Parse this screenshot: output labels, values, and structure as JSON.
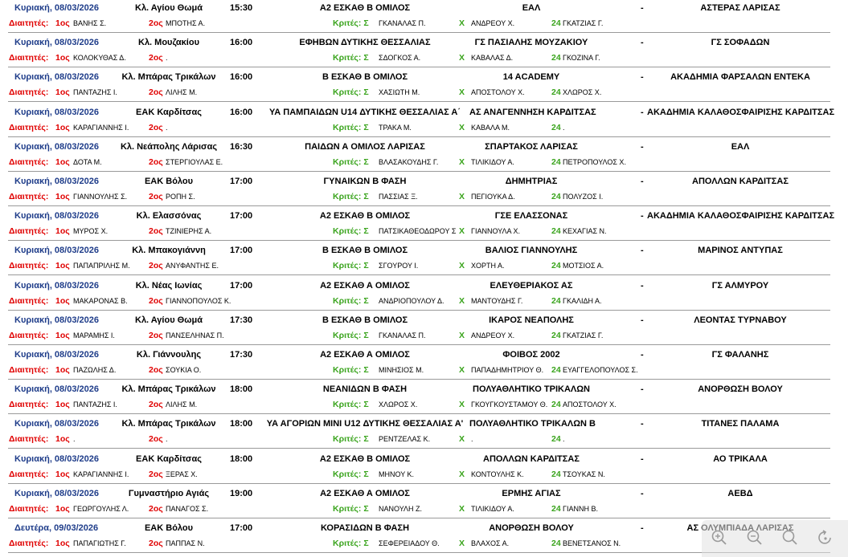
{
  "labels": {
    "referees": "Διαιτητές:",
    "first": "1ος",
    "second": "2ος",
    "judges": "Κριτές:",
    "judges_sigma": "Σ",
    "x": "Χ",
    "twentyfour": "24",
    "dash": "-"
  },
  "matches": [
    {
      "date": "Κυριακή, 08/03/2026",
      "venue": "Κλ. Αγίου Θωμά",
      "time": "15:30",
      "category": "Α2 ΕΣΚΑΘ Β ΟΜΙΛΟΣ",
      "home": "ΕΑΛ",
      "away": "ΑΣΤΕΡΑΣ ΛΑΡΙΣΑΣ",
      "ref1": "ΒΑΝΗΣ Σ.",
      "ref2": "ΜΠΟΤΗΣ Α.",
      "judge1": "ΓΚΑΝΑΛΑΣ Π.",
      "judge2": "ΑΝΔΡΕΟΥ Χ.",
      "judge3": "ΓΚΑΤΖΙΑΣ Γ."
    },
    {
      "date": "Κυριακή, 08/03/2026",
      "venue": "Κλ. Μουζακίου",
      "time": "16:00",
      "category": "ΕΦΗΒΩΝ ΔΥΤΙΚΗΣ ΘΕΣΣΑΛΙΑΣ",
      "home": "ΓΣ ΠΑΣΙΑΛΗΣ ΜΟΥΖΑΚΙΟΥ",
      "away": "ΓΣ ΣΟΦΑΔΩΝ",
      "ref1": "ΚΟΛΟΚΥΘΑΣ Δ.",
      "ref2": ".",
      "judge1": "ΣΔΟΓΚΟΣ Α.",
      "judge2": "ΚΑΒΑΛΑΣ Δ.",
      "judge3": "ΓΚΟΖΙΝΑ Γ."
    },
    {
      "date": "Κυριακή, 08/03/2026",
      "venue": "Κλ. Μπάρας Τρικάλων",
      "time": "16:00",
      "category": "Β ΕΣΚΑΘ Β ΟΜΙΛΟΣ",
      "home": "14 ACADEMY",
      "away": "ΑΚΑΔΗΜΙΑ ΦΑΡΣΑΛΩΝ ΕΝΤΕΚΑ",
      "ref1": "ΠΑΝΤΑΖΗΣ Ι.",
      "ref2": "ΛΙΛΗΣ Μ.",
      "judge1": "ΧΑΣΙΩΤΗ Μ.",
      "judge2": "ΑΠΟΣΤΟΛΟΥ Χ.",
      "judge3": "ΧΛΩΡΟΣ Χ."
    },
    {
      "date": "Κυριακή, 08/03/2026",
      "venue": "ΕΑΚ Καρδίτσας",
      "time": "16:00",
      "category": "ΥΑ ΠΑΜΠΑΙΔΩΝ U14 ΔΥΤΙΚΗΣ ΘΕΣΣΑΛΙΑΣ Α΄",
      "home": "ΑΣ ΑΝΑΓΕΝΝΗΣΗ ΚΑΡΔΙΤΣΑΣ",
      "away": "ΑΚΑΔΗΜΙΑ ΚΑΛΑΘΟΣΦΑΙΡΙΣΗΣ ΚΑΡΔΙΤΣΑΣ",
      "ref1": "ΚΑΡΑΓΙΑΝΝΗΣ Ι.",
      "ref2": ".",
      "judge1": "ΤΡΑΚΑ Μ.",
      "judge2": "ΚΑΒΑΛΑ Μ.",
      "judge3": "."
    },
    {
      "date": "Κυριακή, 08/03/2026",
      "venue": "Κλ. Νεάπολης Λάρισας",
      "time": "16:30",
      "category": "ΠΑΙΔΩΝ Α ΟΜΙΛΟΣ ΛΑΡΙΣΑΣ",
      "home": "ΣΠΑΡΤΑΚΟΣ ΛΑΡΙΣΑΣ",
      "away": "ΕΑΛ",
      "ref1": "ΔΟΤΑ Μ.",
      "ref2": "ΣΤΕΡΓΙΟΥΛΑΣ Ε.",
      "judge1": "ΒΛΑΣΑΚΟΥΔΗΣ Γ.",
      "judge2": "ΤΙΛΙΚΙΔΟΥ Α.",
      "judge3": "ΠΕΤΡΟΠΟΥΛΟΣ Χ."
    },
    {
      "date": "Κυριακή, 08/03/2026",
      "venue": "ΕΑΚ Βόλου",
      "time": "17:00",
      "category": "ΓΥΝΑΙΚΩΝ Β ΦΑΣΗ",
      "home": "ΔΗΜΗΤΡΙΑΣ",
      "away": "ΑΠΟΛΛΩΝ ΚΑΡΔΙΤΣΑΣ",
      "ref1": "ΓΙΑΝΝΟΥΛΗΣ Σ.",
      "ref2": "ΡΟΠΗ Σ.",
      "judge1": "ΠΑΣΣΙΑΣ Ξ.",
      "judge2": "ΠΕΓΙΟΥΚΑ Δ.",
      "judge3": "ΠΟΛΥΖΟΣ Ι."
    },
    {
      "date": "Κυριακή, 08/03/2026",
      "venue": "Κλ. Ελασσόνας",
      "time": "17:00",
      "category": "Α2 ΕΣΚΑΘ Β ΟΜΙΛΟΣ",
      "home": "ΓΣΕ ΕΛΑΣΣΟΝΑΣ",
      "away": "ΑΚΑΔΗΜΙΑ ΚΑΛΑΘΟΣΦΑΙΡΙΣΗΣ ΚΑΡΔΙΤΣΑΣ",
      "ref1": "ΜΥΡΟΣ Χ.",
      "ref2": "ΤΖΙΝΙΕΡΗΣ Α.",
      "judge1": "ΠΑΤΣΙΚΑΘΕΟΔΩΡΟΥ Σ",
      "judge2": "ΓΙΑΝΝΟΥΛΑ Χ.",
      "judge3": "ΚΕΧΑΓΙΑΣ Ν."
    },
    {
      "date": "Κυριακή, 08/03/2026",
      "venue": "Κλ. Μπακογιάννη",
      "time": "17:00",
      "category": "Β ΕΣΚΑΘ Β ΟΜΙΛΟΣ",
      "home": "ΒΑΛΙΟΣ ΓΙΑΝΝΟΥΛΗΣ",
      "away": "ΜΑΡΙΝΟΣ ΑΝΤΥΠΑΣ",
      "ref1": "ΠΑΠΑΠΡΙΛΗΣ Μ.",
      "ref2": "ΑΝΥΦΑΝΤΗΣ Ε.",
      "judge1": "ΣΓΟΥΡΟΥ Ι.",
      "judge2": "ΧΟΡΤΗ Α.",
      "judge3": "ΜΟΤΣΙΟΣ Α."
    },
    {
      "date": "Κυριακή, 08/03/2026",
      "venue": "Κλ. Νέας Ιωνίας",
      "time": "17:00",
      "category": "Α2 ΕΣΚΑΘ Α ΟΜΙΛΟΣ",
      "home": "ΕΛΕΥΘΕΡΙΑΚΟΣ ΑΣ",
      "away": "ΓΣ ΑΛΜΥΡΟΥ",
      "ref1": "ΜΑΚΑΡΟΝΑΣ Β.",
      "ref2": "ΓΙΑΝΝΟΠΟΥΛΟΣ Κ.",
      "judge1": "ΑΝΔΡΙΟΠΟΥΛΟΥ Δ.",
      "judge2": "ΜΑΝΤΟΥΔΗΣ Γ.",
      "judge3": "ΓΚΑΛΙΔΗ Α."
    },
    {
      "date": "Κυριακή, 08/03/2026",
      "venue": "Κλ. Αγίου Θωμά",
      "time": "17:30",
      "category": "Β ΕΣΚΑΘ Β ΟΜΙΛΟΣ",
      "home": "ΙΚΑΡΟΣ ΝΕΑΠΟΛΗΣ",
      "away": "ΛΕΟΝΤΑΣ ΤΥΡΝΑΒΟΥ",
      "ref1": "ΜΑΡΑΜΗΣ Ι.",
      "ref2": "ΠΑΝΣΕΛΗΝΑΣ Π.",
      "judge1": "ΓΚΑΝΑΛΑΣ Π.",
      "judge2": "ΑΝΔΡΕΟΥ Χ.",
      "judge3": "ΓΚΑΤΖΙΑΣ Γ."
    },
    {
      "date": "Κυριακή, 08/03/2026",
      "venue": "Κλ. Γιάννουλης",
      "time": "17:30",
      "category": "Α2 ΕΣΚΑΘ Α ΟΜΙΛΟΣ",
      "home": "ΦΟΙΒΟΣ 2002",
      "away": "ΓΣ ΦΑΛΑΝΗΣ",
      "ref1": "ΠΑΖΩΛΗΣ Δ.",
      "ref2": "ΣΟΥΚΙΑ Ο.",
      "judge1": "ΜΙΝΗΣΙΟΣ Μ.",
      "judge2": "ΠΑΠΑΔΗΜΗΤΡΙΟΥ Θ.",
      "judge3": "ΕΥΑΓΓΕΛΟΠΟΥΛΟΣ Σ."
    },
    {
      "date": "Κυριακή, 08/03/2026",
      "venue": "Κλ. Μπάρας Τρικάλων",
      "time": "18:00",
      "category": "ΝΕΑΝΙΔΩΝ Β ΦΑΣΗ",
      "home": "ΠΟΛΥΑΘΛΗΤΙΚΟ ΤΡΙΚΑΛΩΝ",
      "away": "ΑΝΟΡΘΩΣΗ ΒΟΛΟΥ",
      "ref1": "ΠΑΝΤΑΖΗΣ Ι.",
      "ref2": "ΛΙΛΗΣ Μ.",
      "judge1": "ΧΛΩΡΟΣ Χ.",
      "judge2": "ΓΚΟΥΓΚΟΥΣΤΑΜΟΥ Θ.",
      "judge3": "ΑΠΟΣΤΟΛΟΥ Χ."
    },
    {
      "date": "Κυριακή, 08/03/2026",
      "venue": "Κλ. Μπάρας Τρικάλων",
      "time": "18:00",
      "category": "ΥΑ ΑΓΟΡΙΩΝ MINI U12 ΔΥΤΙΚΗΣ ΘΕΣΣΑΛΙΑΣ Α'",
      "home": "ΠΟΛΥΑΘΛΗΤΙΚΟ ΤΡΙΚΑΛΩΝ Β",
      "away": "ΤΙΤΑΝΕΣ ΠΑΛΑΜΑ",
      "ref1": ".",
      "ref2": ".",
      "judge1": "ΡΕΝΤΖΕΛΑΣ Κ.",
      "judge2": ".",
      "judge3": "."
    },
    {
      "date": "Κυριακή, 08/03/2026",
      "venue": "ΕΑΚ Καρδίτσας",
      "time": "18:00",
      "category": "Α2 ΕΣΚΑΘ Β ΟΜΙΛΟΣ",
      "home": "ΑΠΟΛΛΩΝ ΚΑΡΔΙΤΣΑΣ",
      "away": "ΑΟ ΤΡΙΚΑΛΑ",
      "ref1": "ΚΑΡΑΓΙΑΝΝΗΣ Ι.",
      "ref2": "ΞΕΡΑΣ Χ.",
      "judge1": "ΜΗΝΟΥ Κ.",
      "judge2": "ΚΟΝΤΟΥΛΗΣ Κ.",
      "judge3": "ΤΣΟΥΚΑΣ Ν."
    },
    {
      "date": "Κυριακή, 08/03/2026",
      "venue": "Γυμναστήριο Αγιάς",
      "time": "19:00",
      "category": "Α2 ΕΣΚΑΘ Α ΟΜΙΛΟΣ",
      "home": "ΕΡΜΗΣ ΑΓΙΑΣ",
      "away": "ΑΕΒΔ",
      "ref1": "ΓΕΩΡΓΟΥΛΗΣ Λ.",
      "ref2": "ΠΑΝΑΓΟΣ Σ.",
      "judge1": "ΝΑΝΟΥΛΗ Ζ.",
      "judge2": "ΤΙΛΙΚΙΔΟΥ Α.",
      "judge3": "ΓΙΑΝΝΗ Β."
    },
    {
      "date": "Δευτέρα, 09/03/2026",
      "venue": "ΕΑΚ Βόλου",
      "time": "17:00",
      "category": "ΚΟΡΑΣΙΔΩΝ Β ΦΑΣΗ",
      "home": "ΑΝΟΡΘΩΣΗ ΒΟΛΟΥ",
      "away": "ΑΣ ΟΛΥΜΠΙΑΔΑ ΛΑΡΙΣΑΣ",
      "ref1": "ΠΑΠΑΓΙΩΤΗΣ Γ.",
      "ref2": "ΠΑΠΠΑΣ Ν.",
      "judge1": "ΣΕΦΕΡΕΙΑΔΟΥ Θ.",
      "judge2": "ΒΛΑΧΟΣ Α.",
      "judge3": "ΒΕΝΕΤΣΑΝΟΣ Ν."
    }
  ],
  "icons": {
    "zoom_in": "zoom-in-icon",
    "zoom_out": "zoom-out-icon",
    "zoom_reset": "zoom-reset-icon",
    "rotate": "rotate-icon"
  }
}
